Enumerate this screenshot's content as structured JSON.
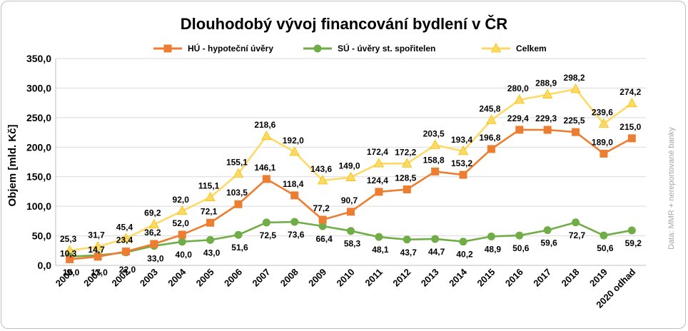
{
  "chart_data": {
    "type": "line",
    "title": "Dlouhodobý vývoj financování bydlení v ČR",
    "ylabel": "Objem [mld. Kč]",
    "xlabel": "",
    "source_note": "Data: MMR + nereportované banky",
    "ylim": [
      0,
      350
    ],
    "yticks": [
      0,
      50,
      100,
      150,
      200,
      250,
      300,
      350
    ],
    "ytick_labels": [
      "0,0",
      "50,0",
      "100,0",
      "150,0",
      "200,0",
      "250,0",
      "300,0",
      "350,0"
    ],
    "grid": true,
    "legend_position": "top",
    "categories": [
      "2000",
      "2001",
      "2002",
      "2003",
      "2004",
      "2005",
      "2006",
      "2007",
      "2008",
      "2009",
      "2010",
      "2011",
      "2012",
      "2013",
      "2014",
      "2015",
      "2016",
      "2017",
      "2018",
      "2019",
      "2020 odhad"
    ],
    "series": [
      {
        "name": "HÚ - hypoteční úvěry",
        "color": "#ed7d31",
        "marker": "square",
        "values": [
          10.3,
          14.7,
          23.4,
          36.2,
          52.0,
          72.1,
          103.5,
          146.1,
          118.4,
          77.2,
          90.7,
          124.4,
          128.5,
          158.8,
          153.2,
          196.8,
          229.4,
          229.3,
          225.5,
          189.0,
          215.0
        ],
        "labels": [
          "10,3",
          "14,7",
          "23,4",
          "36,2",
          "52,0",
          "72,1",
          "103,5",
          "146,1",
          "118,4",
          "77,2",
          "90,7",
          "124,4",
          "128,5",
          "158,8",
          "153,2",
          "196,8",
          "229,4",
          "229,3",
          "225,5",
          "189,0",
          "215,0"
        ]
      },
      {
        "name": "SÚ - úvěry st. spořitelen",
        "color": "#70ad47",
        "marker": "circle",
        "values": [
          15.0,
          17.0,
          22.0,
          33.0,
          40.0,
          43.0,
          51.6,
          72.5,
          73.6,
          66.4,
          58.3,
          48.1,
          43.7,
          44.7,
          40.2,
          48.9,
          50.6,
          59.6,
          72.7,
          50.6,
          59.2
        ],
        "labels": [
          "15,0",
          "17,0",
          "22,0",
          "33,0",
          "40,0",
          "43,0",
          "51,6",
          "72,5",
          "73,6",
          "66,4",
          "58,3",
          "48,1",
          "43,7",
          "44,7",
          "40,2",
          "48,9",
          "50,6",
          "59,6",
          "72,7",
          "50,6",
          "59,2"
        ]
      },
      {
        "name": "Celkem",
        "color": "#ffd966",
        "marker": "triangle",
        "values": [
          25.3,
          31.7,
          45.4,
          69.2,
          92.0,
          115.1,
          155.1,
          218.6,
          192.0,
          143.6,
          149.0,
          172.4,
          172.2,
          203.5,
          193.4,
          245.8,
          280.0,
          288.9,
          298.2,
          239.6,
          274.2
        ],
        "labels": [
          "25,3",
          "31,7",
          "45,4",
          "69,2",
          "92,0",
          "115,1",
          "155,1",
          "218,6",
          "192,0",
          "143,6",
          "149,0",
          "172,4",
          "172,2",
          "203,5",
          "193,4",
          "245,8",
          "280,0",
          "288,9",
          "298,2",
          "239,6",
          "274,2"
        ]
      }
    ]
  }
}
